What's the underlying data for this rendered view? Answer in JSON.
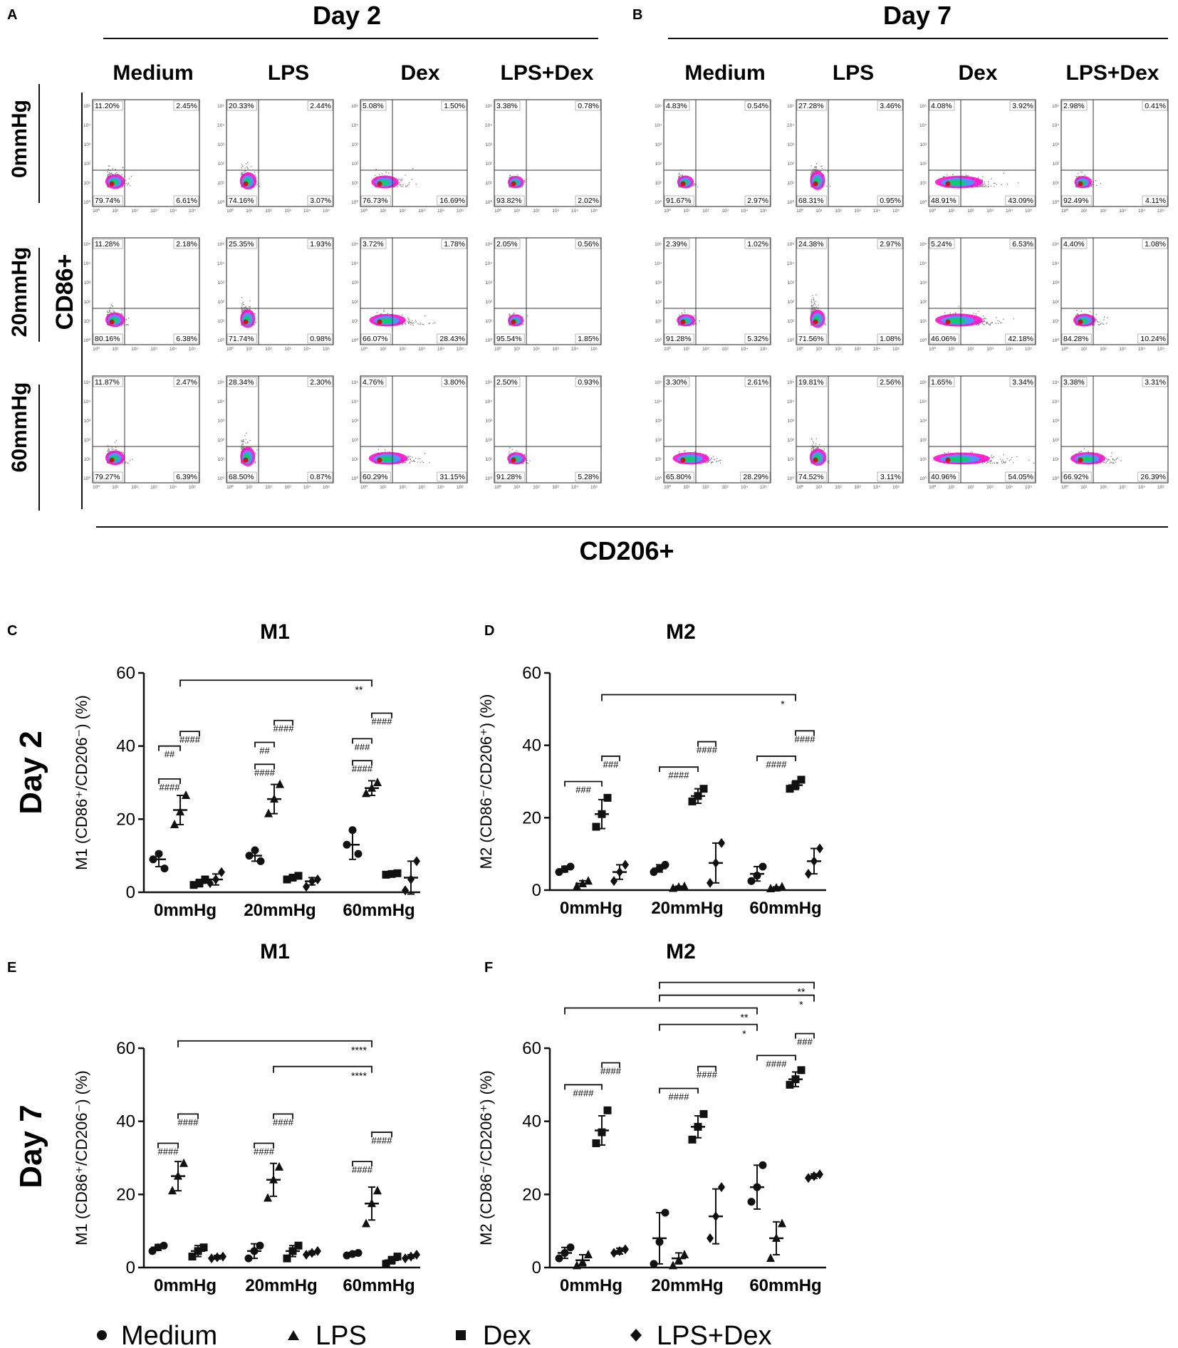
{
  "panels": {
    "A": "A",
    "B": "B",
    "C": "C",
    "D": "D",
    "E": "E",
    "F": "F"
  },
  "flow": {
    "days": [
      "Day 2",
      "Day 7"
    ],
    "conditions": [
      "Medium",
      "LPS",
      "Dex",
      "LPS+Dex"
    ],
    "pressures": [
      "0mmHg",
      "20mmHg",
      "60mmHg"
    ],
    "y_label": "CD86+",
    "x_label": "CD206+",
    "axis_ticks": [
      "10⁰",
      "10¹",
      "10²",
      "10³",
      "10⁴",
      "10⁵"
    ],
    "quadrants": {
      "day2": [
        [
          [
            "11.20%",
            "2.45%",
            "79.74%",
            "6.61%"
          ],
          [
            "20.33%",
            "2.44%",
            "74.16%",
            "3.07%"
          ],
          [
            "5.08%",
            "1.50%",
            "76.73%",
            "16.69%"
          ],
          [
            "3.38%",
            "0.78%",
            "93.82%",
            "2.02%"
          ]
        ],
        [
          [
            "11.28%",
            "2.18%",
            "80.16%",
            "6.38%"
          ],
          [
            "25.35%",
            "1.93%",
            "71.74%",
            "0.98%"
          ],
          [
            "3.72%",
            "1.78%",
            "66.07%",
            "28.43%"
          ],
          [
            "2.05%",
            "0.56%",
            "95.54%",
            "1.85%"
          ]
        ],
        [
          [
            "11.87%",
            "2.47%",
            "79.27%",
            "6.39%"
          ],
          [
            "28.34%",
            "2.30%",
            "68.50%",
            "0.87%"
          ],
          [
            "4.76%",
            "3.80%",
            "60.29%",
            "31.15%"
          ],
          [
            "2.50%",
            "0.93%",
            "91.28%",
            "5.28%"
          ]
        ]
      ],
      "day7": [
        [
          [
            "4.83%",
            "0.54%",
            "91.67%",
            "2.97%"
          ],
          [
            "27.28%",
            "3.46%",
            "68.31%",
            "0.95%"
          ],
          [
            "4.08%",
            "3.92%",
            "48.91%",
            "43.09%"
          ],
          [
            "2.98%",
            "0.41%",
            "92.49%",
            "4.11%"
          ]
        ],
        [
          [
            "2.39%",
            "1.02%",
            "91.28%",
            "5.32%"
          ],
          [
            "24.38%",
            "2.97%",
            "71.56%",
            "1.08%"
          ],
          [
            "5.24%",
            "6.53%",
            "46.06%",
            "42.18%"
          ],
          [
            "4.40%",
            "1.08%",
            "84.28%",
            "10.24%"
          ]
        ],
        [
          [
            "3.30%",
            "2.61%",
            "65.80%",
            "28.29%"
          ],
          [
            "19.81%",
            "2.56%",
            "74.52%",
            "3.11%"
          ],
          [
            "1.65%",
            "3.34%",
            "40.96%",
            "54.05%"
          ],
          [
            "3.38%",
            "3.31%",
            "66.92%",
            "26.39%"
          ]
        ]
      ]
    },
    "colors": {
      "scatter": "#8c8c8c",
      "core": [
        "#ff00cc",
        "#3da0ff",
        "#10cc70",
        "#d41010"
      ],
      "gate": "#333333"
    }
  },
  "row_labels": {
    "day2": "Day 2",
    "day7": "Day 7"
  },
  "legend": [
    "Medium",
    "LPS",
    "Dex",
    "LPS+Dex"
  ],
  "chart_data": [
    {
      "type": "scatter",
      "panel": "C",
      "title": "M1",
      "ylabel": "M1 (CD86⁺/CD206⁻) (%)",
      "categories": [
        "0mmHg",
        "20mmHg",
        "60mmHg"
      ],
      "ylim": [
        0,
        60
      ],
      "yticks": [
        0,
        20,
        40,
        60
      ],
      "series": [
        {
          "name": "Medium",
          "marker": "circle",
          "points": [
            [
              9,
              10.5,
              6.5
            ],
            [
              10,
              11.5,
              8.5
            ],
            [
              13,
              17,
              10.5
            ]
          ],
          "mean": [
            9,
            10,
            13
          ],
          "err": [
            2,
            1.5,
            4
          ]
        },
        {
          "name": "LPS",
          "marker": "triangle",
          "points": [
            [
              18.5,
              22,
              26.5
            ],
            [
              21.5,
              25.5,
              29.5
            ],
            [
              27,
              28.5,
              30
            ]
          ],
          "mean": [
            22.5,
            25.5,
            28.5
          ],
          "err": [
            4,
            4,
            2
          ]
        },
        {
          "name": "Dex",
          "marker": "square",
          "points": [
            [
              2,
              2.5,
              3.5
            ],
            [
              3.5,
              4,
              4.5
            ],
            [
              4.8,
              5,
              5.2
            ]
          ],
          "mean": [
            2.5,
            4,
            5
          ],
          "err": [
            1,
            0.5,
            0.3
          ]
        },
        {
          "name": "LPS+Dex",
          "marker": "diamond",
          "points": [
            [
              2.5,
              3.5,
              5.5
            ],
            [
              1.5,
              3,
              3.5
            ],
            [
              0.5,
              3.5,
              8.5
            ]
          ],
          "mean": [
            3.5,
            3,
            4
          ],
          "err": [
            1.5,
            1,
            4.5
          ]
        }
      ],
      "annotations": [
        {
          "text": "####",
          "group": 0,
          "from": 0,
          "to": 1,
          "y": 31
        },
        {
          "text": "##",
          "group": 0,
          "from": 0,
          "to": 1,
          "y": 40
        },
        {
          "text": "####",
          "group": 0,
          "from": 1,
          "to": 2,
          "y": 44
        },
        {
          "text": "####",
          "group": 1,
          "from": 0,
          "to": 1,
          "y": 35
        },
        {
          "text": "##",
          "group": 1,
          "from": 0,
          "to": 1,
          "y": 41
        },
        {
          "text": "####",
          "group": 1,
          "from": 1,
          "to": 2,
          "y": 47
        },
        {
          "text": "####",
          "group": 2,
          "from": 0,
          "to": 1,
          "y": 36
        },
        {
          "text": "###",
          "group": 2,
          "from": 0,
          "to": 1,
          "y": 42
        },
        {
          "text": "####",
          "group": 2,
          "from": 1,
          "to": 2,
          "y": 49
        }
      ],
      "brackets": [
        {
          "text": "**",
          "x1": [
            0,
            1
          ],
          "x2": [
            2,
            1
          ],
          "y": 58
        }
      ]
    },
    {
      "type": "scatter",
      "panel": "D",
      "title": "M2",
      "ylabel": "M2 (CD86⁻/CD206⁺) (%)",
      "categories": [
        "0mmHg",
        "20mmHg",
        "60mmHg"
      ],
      "ylim": [
        0,
        60
      ],
      "yticks": [
        0,
        20,
        40,
        60
      ],
      "series": [
        {
          "name": "Medium",
          "marker": "circle",
          "points": [
            [
              5,
              5.8,
              6.5
            ],
            [
              5,
              6,
              7
            ],
            [
              2.5,
              4,
              6.5
            ]
          ],
          "mean": [
            5.8,
            6,
            4.5
          ],
          "err": [
            0.8,
            1,
            2
          ]
        },
        {
          "name": "LPS",
          "marker": "triangle",
          "points": [
            [
              1,
              1.8,
              2.5
            ],
            [
              0.5,
              0.8,
              1
            ],
            [
              0.4,
              0.6,
              0.9
            ]
          ],
          "mean": [
            1.8,
            0.8,
            0.6
          ],
          "err": [
            0.8,
            0.3,
            0.3
          ]
        },
        {
          "name": "Dex",
          "marker": "square",
          "points": [
            [
              17.5,
              21,
              25.5
            ],
            [
              24.5,
              26,
              28
            ],
            [
              28,
              29,
              30.5
            ]
          ],
          "mean": [
            21,
            26,
            29
          ],
          "err": [
            4,
            2,
            1.2
          ]
        },
        {
          "name": "LPS+Dex",
          "marker": "diamond",
          "points": [
            [
              2.5,
              5,
              7
            ],
            [
              2,
              7.5,
              13
            ],
            [
              4.5,
              8,
              11.5
            ]
          ],
          "mean": [
            5,
            7.5,
            8
          ],
          "err": [
            2,
            5.5,
            3.5
          ]
        }
      ],
      "annotations": [
        {
          "text": "###",
          "group": 0,
          "from": 0,
          "to": 2,
          "y": 30
        },
        {
          "text": "###",
          "group": 0,
          "from": 2,
          "to": 3,
          "y": 37
        },
        {
          "text": "####",
          "group": 1,
          "from": 0,
          "to": 2,
          "y": 34
        },
        {
          "text": "####",
          "group": 1,
          "from": 2,
          "to": 3,
          "y": 41
        },
        {
          "text": "####",
          "group": 2,
          "from": 0,
          "to": 2,
          "y": 37
        },
        {
          "text": "####",
          "group": 2,
          "from": 2,
          "to": 3,
          "y": 44
        }
      ],
      "brackets": [
        {
          "text": "*",
          "x1": [
            0,
            2
          ],
          "x2": [
            2,
            2
          ],
          "y": 54
        }
      ]
    },
    {
      "type": "scatter",
      "panel": "E",
      "title": "M1",
      "ylabel": "M1 (CD86⁺/CD206⁻) (%)",
      "categories": [
        "0mmHg",
        "20mmHg",
        "60mmHg"
      ],
      "ylim": [
        0,
        60
      ],
      "yticks": [
        0,
        20,
        40,
        60
      ],
      "series": [
        {
          "name": "Medium",
          "marker": "circle",
          "points": [
            [
              4.5,
              5.5,
              6
            ],
            [
              2.5,
              4.5,
              6
            ],
            [
              3.3,
              3.7,
              4
            ]
          ],
          "mean": [
            5.5,
            4.5,
            3.7
          ],
          "err": [
            0.8,
            2,
            0.4
          ]
        },
        {
          "name": "LPS",
          "marker": "triangle",
          "points": [
            [
              21,
              25,
              28.5
            ],
            [
              19,
              24,
              27.5
            ],
            [
              12,
              17.5,
              21
            ]
          ],
          "mean": [
            25,
            24,
            17.5
          ],
          "err": [
            4,
            4.5,
            4.5
          ]
        },
        {
          "name": "Dex",
          "marker": "square",
          "points": [
            [
              3,
              4.5,
              5.5
            ],
            [
              2.5,
              4.5,
              6
            ],
            [
              1,
              2,
              3
            ]
          ],
          "mean": [
            4.5,
            4.5,
            2
          ],
          "err": [
            1.5,
            1.5,
            1
          ]
        },
        {
          "name": "LPS+Dex",
          "marker": "diamond",
          "points": [
            [
              2.5,
              2.8,
              3
            ],
            [
              3.5,
              4,
              4.5
            ],
            [
              2.5,
              3,
              3.5
            ]
          ],
          "mean": [
            2.8,
            4,
            3
          ],
          "err": [
            0.5,
            0.5,
            0.5
          ]
        }
      ],
      "annotations": [
        {
          "text": "####",
          "group": 0,
          "from": 0,
          "to": 1,
          "y": 34
        },
        {
          "text": "####",
          "group": 0,
          "from": 1,
          "to": 2,
          "y": 42
        },
        {
          "text": "####",
          "group": 1,
          "from": 0,
          "to": 1,
          "y": 34
        },
        {
          "text": "####",
          "group": 1,
          "from": 1,
          "to": 2,
          "y": 42
        },
        {
          "text": "####",
          "group": 2,
          "from": 0,
          "to": 1,
          "y": 29
        },
        {
          "text": "####",
          "group": 2,
          "from": 1,
          "to": 2,
          "y": 37
        }
      ],
      "brackets": [
        {
          "text": "****",
          "x1": [
            0,
            1
          ],
          "x2": [
            2,
            1
          ],
          "y": 62
        },
        {
          "text": "****",
          "x1": [
            1,
            1
          ],
          "x2": [
            2,
            1
          ],
          "y": 55
        }
      ]
    },
    {
      "type": "scatter",
      "panel": "F",
      "title": "M2",
      "ylabel": "M2 (CD86⁻/CD206⁺) (%)",
      "categories": [
        "0mmHg",
        "20mmHg",
        "60mmHg"
      ],
      "ylim": [
        0,
        60
      ],
      "yticks": [
        0,
        20,
        40,
        60
      ],
      "series": [
        {
          "name": "Medium",
          "marker": "circle",
          "points": [
            [
              2.5,
              4,
              5.5
            ],
            [
              1,
              7,
              15
            ],
            [
              18,
              22,
              28
            ]
          ],
          "mean": [
            4,
            8,
            22
          ],
          "err": [
            1.5,
            7,
            6
          ]
        },
        {
          "name": "LPS",
          "marker": "triangle",
          "points": [
            [
              0.5,
              1.5,
              3.5
            ],
            [
              0.5,
              2,
              3.5
            ],
            [
              2.5,
              8,
              12
            ]
          ],
          "mean": [
            2,
            2.5,
            8
          ],
          "err": [
            1.5,
            1.5,
            4.5
          ]
        },
        {
          "name": "Dex",
          "marker": "square",
          "points": [
            [
              34,
              37,
              43
            ],
            [
              35,
              38.5,
              42
            ],
            [
              50,
              51.5,
              54
            ]
          ],
          "mean": [
            37.5,
            38.5,
            51.5
          ],
          "err": [
            4,
            3,
            2
          ]
        },
        {
          "name": "LPS+Dex",
          "marker": "diamond",
          "points": [
            [
              4,
              4.5,
              5
            ],
            [
              8,
              14,
              22
            ],
            [
              24.5,
              25,
              25.5
            ]
          ],
          "mean": [
            4.5,
            14,
            25
          ],
          "err": [
            0.8,
            7.5,
            0.6
          ]
        }
      ],
      "annotations": [
        {
          "text": "####",
          "group": 0,
          "from": 0,
          "to": 2,
          "y": 50
        },
        {
          "text": "####",
          "group": 0,
          "from": 2,
          "to": 3,
          "y": 56
        },
        {
          "text": "####",
          "group": 1,
          "from": 0,
          "to": 2,
          "y": 49
        },
        {
          "text": "####",
          "group": 1,
          "from": 2,
          "to": 3,
          "y": 55
        },
        {
          "text": "####",
          "group": 2,
          "from": 0,
          "to": 2,
          "y": 58
        },
        {
          "text": "###",
          "group": 2,
          "from": 2,
          "to": 3,
          "y": 64
        }
      ],
      "brackets": [
        {
          "text": "**",
          "x1": [
            1,
            0
          ],
          "x2": [
            2,
            3
          ],
          "y": 78
        },
        {
          "text": "*",
          "x1": [
            1,
            0
          ],
          "x2": [
            2,
            3
          ],
          "y": 74.5
        },
        {
          "text": "**",
          "x1": [
            0,
            0
          ],
          "x2": [
            2,
            0
          ],
          "y": 71
        },
        {
          "text": "*",
          "x1": [
            1,
            0
          ],
          "x2": [
            2,
            0
          ],
          "y": 66.5
        }
      ]
    }
  ]
}
